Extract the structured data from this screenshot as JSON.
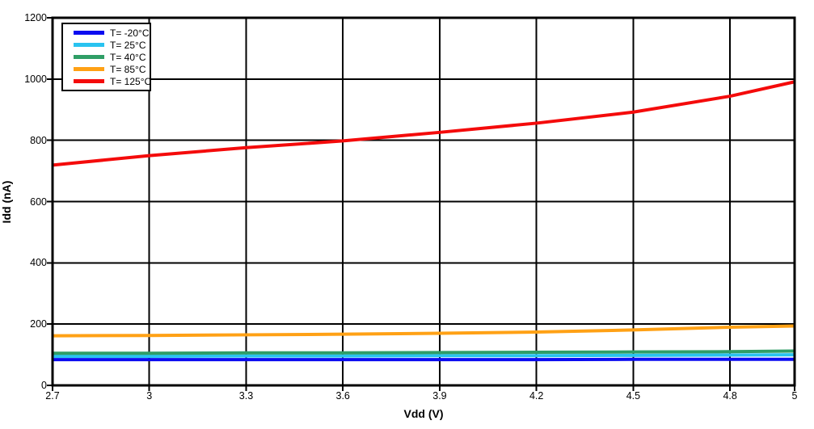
{
  "chart_data": {
    "type": "line",
    "title": "",
    "xlabel": "Vdd (V)",
    "ylabel": "Idd (nA)",
    "xlim": [
      2.7,
      5
    ],
    "ylim": [
      0,
      1200
    ],
    "xticks": [
      2.7,
      3,
      3.3,
      3.6,
      3.9,
      4.2,
      4.5,
      4.8,
      5
    ],
    "xtick_labels": [
      "2.7",
      "3",
      "3.3",
      "3.6",
      "3.9",
      "4.2",
      "4.5",
      "4.8",
      "5"
    ],
    "yticks": [
      0,
      200,
      400,
      600,
      800,
      1000,
      1200
    ],
    "ytick_labels": [
      "0",
      "200",
      "400",
      "600",
      "800",
      "1000",
      "1200"
    ],
    "grid": true,
    "grid_color": "#000000",
    "axis_color": "#000000",
    "background_color": "#ffffff",
    "legend_position": "top-left",
    "x": [
      2.7,
      3.0,
      3.3,
      3.6,
      3.9,
      4.2,
      4.5,
      4.8,
      5.0
    ],
    "series": [
      {
        "name": "T= -20°C",
        "color": "#0b0bf0",
        "values": [
          84,
          84,
          84,
          84,
          84,
          84,
          85,
          85,
          85
        ]
      },
      {
        "name": "T= 25°C",
        "color": "#29c3f0",
        "values": [
          95,
          95,
          96,
          96,
          97,
          97,
          98,
          99,
          100
        ]
      },
      {
        "name": "T= 40°C",
        "color": "#2f9e66",
        "values": [
          105,
          105,
          106,
          106,
          107,
          108,
          109,
          110,
          112
        ]
      },
      {
        "name": "T= 85°C",
        "color": "#ffa115",
        "values": [
          162,
          163,
          165,
          167,
          170,
          174,
          181,
          190,
          194
        ]
      },
      {
        "name": "T= 125°C",
        "color": "#f40b0b",
        "values": [
          719,
          750,
          776,
          798,
          826,
          856,
          892,
          944,
          991
        ]
      }
    ]
  }
}
